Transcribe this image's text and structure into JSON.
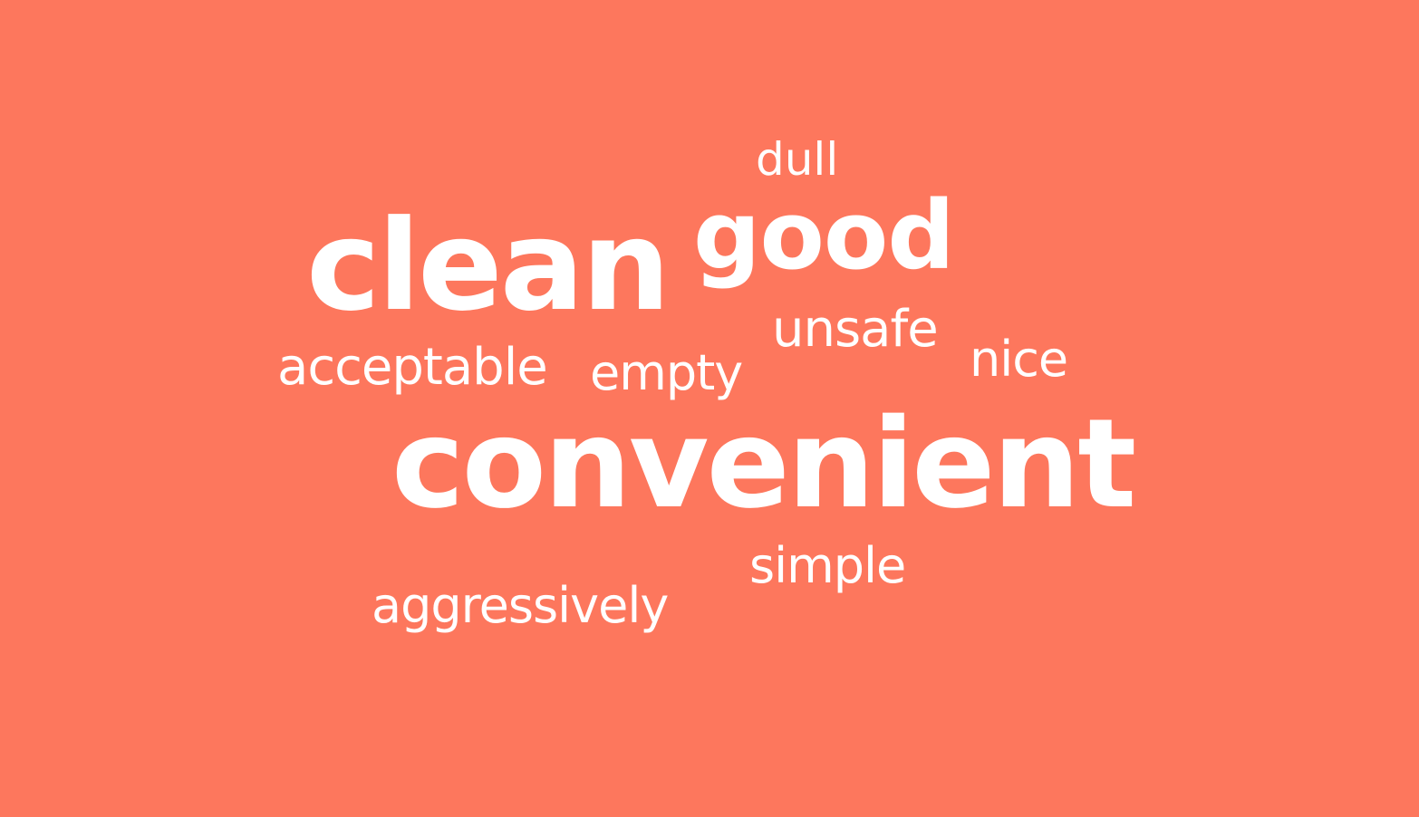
{
  "background_color": "#fd775d",
  "text_color": "#ffffff",
  "words": [
    {
      "text": "dull"
    },
    {
      "text": "good"
    },
    {
      "text": "clean"
    },
    {
      "text": "unsafe"
    },
    {
      "text": "acceptable"
    },
    {
      "text": "empty"
    },
    {
      "text": "nice"
    },
    {
      "text": "convenient"
    },
    {
      "text": "simple"
    },
    {
      "text": "aggressively"
    }
  ]
}
